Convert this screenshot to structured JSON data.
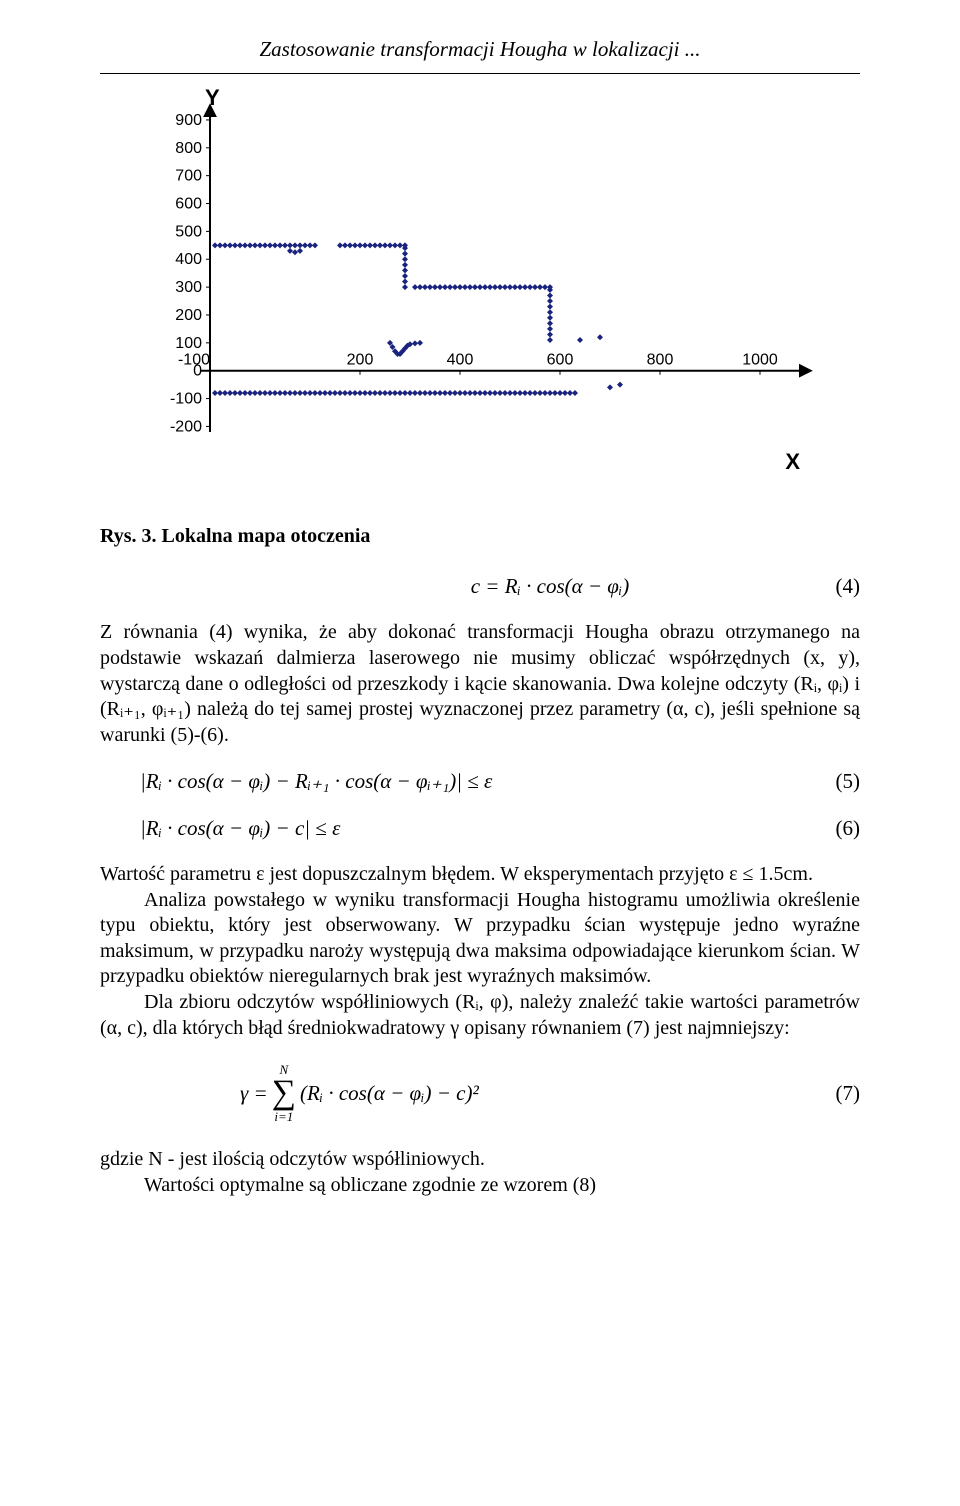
{
  "header": {
    "title": "Zastosowanie transformacji Hougha w lokalizacji ..."
  },
  "chart": {
    "type": "scatter",
    "y_axis_label": "Y",
    "x_axis_label": "X",
    "x_ticks": [
      -100,
      200,
      400,
      600,
      800,
      1000
    ],
    "y_ticks": [
      -200,
      -100,
      0,
      100,
      200,
      300,
      400,
      500,
      600,
      700,
      800,
      900
    ],
    "xlim": [
      -120,
      1100
    ],
    "ylim": [
      -220,
      950
    ],
    "tick_font_family": "Arial",
    "tick_font_size": 16,
    "marker_color": "#1a237e",
    "marker_size": 6,
    "axis_color": "#000000",
    "axis_width": 2,
    "background": "#ffffff",
    "series": {
      "group_a_y": 450,
      "group_a_x": [
        -90,
        -80,
        -70,
        -60,
        -50,
        -40,
        -30,
        -20,
        -10,
        0,
        10,
        20,
        30,
        40,
        50,
        60,
        70,
        80,
        90,
        100,
        110
      ],
      "group_a_dip": [
        [
          60,
          430
        ],
        [
          70,
          425
        ],
        [
          80,
          430
        ]
      ],
      "group_b_y": 450,
      "group_b_x": [
        160,
        170,
        180,
        190,
        200,
        210,
        220,
        230,
        240,
        250,
        260,
        270,
        280,
        290
      ],
      "group_b_vert_x": 290,
      "group_b_vert_y": [
        440,
        420,
        400,
        380,
        360,
        340,
        320,
        300
      ],
      "group_c_y": 300,
      "group_c_x": [
        310,
        320,
        330,
        340,
        350,
        360,
        370,
        380,
        390,
        400,
        410,
        420,
        430,
        440,
        450,
        460,
        470,
        480,
        490,
        500,
        510,
        520,
        530,
        540,
        550,
        560,
        570,
        580
      ],
      "group_c_vert_x": 580,
      "group_c_vert_y": [
        290,
        270,
        250,
        230,
        210,
        190,
        170,
        150,
        130,
        110
      ],
      "group_d_cluster": [
        [
          260,
          100
        ],
        [
          265,
          85
        ],
        [
          270,
          70
        ],
        [
          275,
          60
        ],
        [
          280,
          60
        ],
        [
          285,
          70
        ],
        [
          290,
          80
        ],
        [
          295,
          90
        ],
        [
          300,
          95
        ],
        [
          310,
          98
        ],
        [
          320,
          100
        ]
      ],
      "group_e_y": -80,
      "group_e_x": [
        -90,
        -80,
        -70,
        -60,
        -50,
        -40,
        -30,
        -20,
        -10,
        0,
        10,
        20,
        30,
        40,
        50,
        60,
        70,
        80,
        90,
        100,
        110,
        120,
        130,
        140,
        150,
        160,
        170,
        180,
        190,
        200,
        210,
        220,
        230,
        240,
        250,
        260,
        270,
        280,
        290,
        300,
        310,
        320,
        330,
        340,
        350,
        360,
        370,
        380,
        390,
        400,
        410,
        420,
        430,
        440,
        450,
        460,
        470,
        480,
        490,
        500,
        510,
        520,
        530,
        540,
        550,
        560,
        570,
        580,
        590,
        600,
        610,
        620,
        630
      ],
      "sparse": [
        [
          640,
          110
        ],
        [
          680,
          120
        ],
        [
          700,
          -60
        ],
        [
          720,
          -50
        ]
      ]
    }
  },
  "caption": "Rys. 3. Lokalna mapa otoczenia",
  "eq4": {
    "body": "c = Rᵢ · cos(α − φᵢ)",
    "num": "(4)"
  },
  "p1": "Z równania (4) wynika, że aby dokonać transformacji Hougha obrazu otrzymanego na podstawie wskazań dalmierza laserowego nie musimy obliczać współrzędnych (x, y), wystarczą dane o odległości od przeszkody i kącie skanowania. Dwa kolejne odczyty (Rᵢ, φᵢ) i (Rᵢ₊₁, φᵢ₊₁) należą do tej samej prostej wyznaczonej przez parametry (α, c), jeśli spełnione są warunki (5)-(6).",
  "eq5": {
    "body": "|Rᵢ · cos(α − φᵢ) − Rᵢ₊₁ · cos(α − φᵢ₊₁)| ≤ ε",
    "num": "(5)"
  },
  "eq6": {
    "body": "|Rᵢ · cos(α − φᵢ) − c| ≤ ε",
    "num": "(6)"
  },
  "p2": "Wartość parametru ε jest dopuszczalnym błędem. W eksperymentach przyjęto ε ≤ 1.5cm.",
  "p3": "Analiza powstałego w wyniku transformacji Hougha histogramu umożliwia określenie typu obiektu, który jest obserwowany. W przypadku ścian występuje jedno wyraźne maksimum, w przypadku naroży występują dwa maksima odpowiadające kierunkom ścian. W przypadku obiektów nieregularnych brak jest wyraźnych maksimów.",
  "p4": "Dla zbioru odczytów współliniowych (Rᵢ, φ), należy znaleźć takie wartości parametrów (α, c), dla których błąd średniokwadratowy γ opisany równaniem (7) jest najmniejszy:",
  "eq7": {
    "gamma": "γ =",
    "sum_top": "N",
    "sum_bot": "i=1",
    "body": "(Rᵢ · cos(α − φᵢ) − c)²",
    "num": "(7)"
  },
  "p5": "gdzie N - jest ilością odczytów współliniowych.",
  "p6": "Wartości optymalne są obliczane zgodnie ze wzorem (8)"
}
